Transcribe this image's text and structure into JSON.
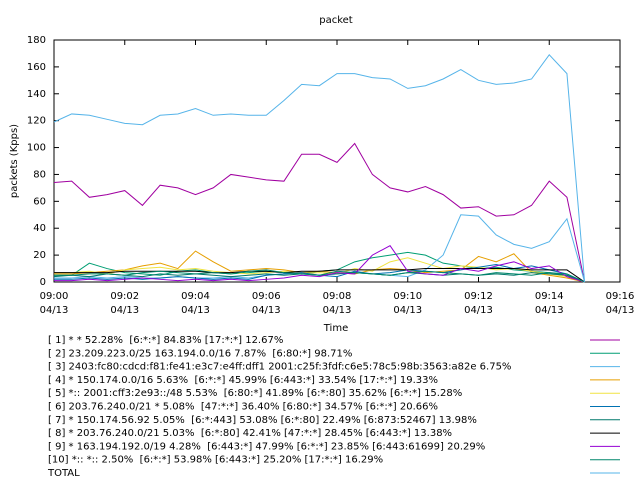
{
  "chart_data": {
    "type": "line",
    "title": "packet",
    "x_label": "Time",
    "y_label": "packets (Kpps)",
    "x": [
      0,
      0.5,
      1,
      1.5,
      2,
      2.5,
      3,
      3.5,
      4,
      4.5,
      5,
      5.5,
      6,
      6.5,
      7,
      7.5,
      8,
      8.5,
      9,
      9.5,
      10,
      10.5,
      11,
      11.5,
      12,
      12.5,
      13,
      13.5,
      14,
      14.5,
      15
    ],
    "xlim": [
      0,
      16
    ],
    "xticks": [
      {
        "value": 0,
        "label": "09:00",
        "sublabel": "04/13"
      },
      {
        "value": 2,
        "label": "09:02",
        "sublabel": "04/13"
      },
      {
        "value": 4,
        "label": "09:04",
        "sublabel": "04/13"
      },
      {
        "value": 6,
        "label": "09:06",
        "sublabel": "04/13"
      },
      {
        "value": 8,
        "label": "09:08",
        "sublabel": "04/13"
      },
      {
        "value": 10,
        "label": "09:10",
        "sublabel": "04/13"
      },
      {
        "value": 12,
        "label": "09:12",
        "sublabel": "04/13"
      },
      {
        "value": 14,
        "label": "09:14",
        "sublabel": "04/13"
      },
      {
        "value": 16,
        "label": "09:16",
        "sublabel": "04/13"
      }
    ],
    "ylim": [
      0,
      180
    ],
    "yticks": [
      0,
      20,
      40,
      60,
      80,
      100,
      120,
      140,
      160,
      180
    ],
    "series": [
      {
        "name": "[ 1] * * 52.28%  [6:*:*] 84.83% [17:*:*] 12.67%",
        "color": "#a000a0",
        "values": [
          74,
          75,
          63,
          65,
          68,
          57,
          72,
          70,
          65,
          70,
          80,
          78,
          76,
          75,
          95,
          95,
          89,
          103,
          80,
          70,
          67,
          71,
          65,
          55,
          56,
          49,
          50,
          57,
          75,
          63,
          0
        ]
      },
      {
        "name": "[ 2] 23.209.223.0/25 163.194.0.0/16 7.87%  [6:80:*] 98.71%",
        "color": "#009e73",
        "values": [
          5,
          5,
          14,
          10,
          7,
          6,
          5,
          8,
          9,
          7,
          6,
          7,
          8,
          7,
          6,
          8,
          9,
          15,
          18,
          20,
          22,
          20,
          14,
          12,
          10,
          11,
          9,
          8,
          7,
          5,
          0
        ]
      },
      {
        "name": "[ 3] 2403:fc80:cdcd:f81:fe41:e3c7:e4ff:dff1 2001:c25f:3fdf:c6e5:78c5:98b:3563:a82e 6.75%",
        "color": "#56b4e9",
        "values": [
          3,
          3,
          4,
          3,
          4,
          3,
          3,
          4,
          3,
          3,
          4,
          3,
          5,
          6,
          7,
          5,
          6,
          7,
          6,
          5,
          4,
          9,
          20,
          50,
          49,
          35,
          28,
          25,
          30,
          47,
          0
        ]
      },
      {
        "name": "[ 4] * 150.174.0.0/16 5.63%  [6:*:*] 45.99% [6:443:*] 33.54% [17:*:*] 19.33%",
        "color": "#e69f00",
        "values": [
          6,
          6,
          7,
          8,
          9,
          12,
          14,
          10,
          23,
          15,
          8,
          9,
          10,
          9,
          7,
          8,
          7,
          6,
          9,
          10,
          9,
          7,
          8,
          9,
          19,
          15,
          21,
          7,
          5,
          3,
          0
        ]
      },
      {
        "name": "[ 5] *:: 2001:cff3:2e93::/48 5.53%  [6:80:*] 41.89% [6:*:80] 35.62% [6:*:*] 15.28%",
        "color": "#f0e442",
        "values": [
          7,
          7,
          8,
          6,
          9,
          10,
          11,
          9,
          10,
          8,
          7,
          6,
          7,
          8,
          6,
          7,
          6,
          10,
          8,
          15,
          18,
          14,
          10,
          12,
          11,
          9,
          10,
          8,
          6,
          4,
          0
        ]
      },
      {
        "name": "[ 6] 203.76.240.0/21 * 5.08%  [47:*:*] 36.40% [6:80:*] 34.57% [6:*:*] 20.66%",
        "color": "#0072b2",
        "values": [
          2,
          2,
          3,
          2,
          3,
          2,
          3,
          4,
          3,
          2,
          3,
          2,
          5,
          6,
          7,
          5,
          4,
          8,
          6,
          7,
          9,
          8,
          7,
          9,
          11,
          13,
          10,
          12,
          9,
          6,
          0
        ]
      },
      {
        "name": "[ 7] * 150.174.56.92 5.05%  [6:*:443] 53.08% [6:*:80] 22.49% [6:873:52467] 13.98%",
        "color": "#00796b",
        "values": [
          4,
          5,
          4,
          6,
          5,
          4,
          6,
          5,
          6,
          5,
          4,
          5,
          6,
          5,
          6,
          5,
          6,
          7,
          6,
          5,
          7,
          6,
          5,
          6,
          5,
          6,
          5,
          7,
          6,
          5,
          0
        ]
      },
      {
        "name": "[ 8] * 203.76.240.0/21 5.03%  [6:*:80] 42.41% [47:*:*] 28.45% [6:443:*] 13.38%",
        "color": "#000000",
        "values": [
          7,
          7,
          7,
          7,
          8,
          8,
          8,
          8,
          8,
          7,
          7,
          8,
          8,
          7,
          8,
          8,
          9,
          9,
          9,
          9,
          9,
          10,
          10,
          10,
          10,
          10,
          10,
          9,
          9,
          9,
          0
        ]
      },
      {
        "name": "[ 9] * 163.194.192.0/19 4.28%  [6:443:*] 47.99% [6:*:*] 23.85% [6:443:61699] 20.29%",
        "color": "#9400d3",
        "values": [
          1,
          1,
          2,
          1,
          2,
          3,
          2,
          1,
          2,
          1,
          2,
          1,
          2,
          3,
          5,
          4,
          7,
          6,
          20,
          27,
          8,
          6,
          5,
          10,
          8,
          12,
          15,
          10,
          12,
          4,
          0
        ]
      },
      {
        "name": "[10] *:: *:: 2.50%  [6:*:*] 53.98% [6:443:*] 25.20% [17:*:*] 16.29%",
        "color": "#00866b",
        "values": [
          5,
          5,
          6,
          6,
          5,
          7,
          8,
          7,
          6,
          7,
          6,
          8,
          9,
          7,
          6,
          5,
          8,
          7,
          6,
          5,
          7,
          8,
          7,
          6,
          5,
          7,
          6,
          5,
          7,
          6,
          0
        ]
      },
      {
        "name": "TOTAL",
        "color": "#56b4e9",
        "values": [
          119,
          125,
          124,
          121,
          118,
          117,
          124,
          125,
          129,
          124,
          125,
          124,
          124,
          135,
          147,
          146,
          155,
          155,
          152,
          151,
          144,
          146,
          151,
          158,
          150,
          147,
          148,
          151,
          169,
          155,
          0
        ]
      }
    ]
  }
}
